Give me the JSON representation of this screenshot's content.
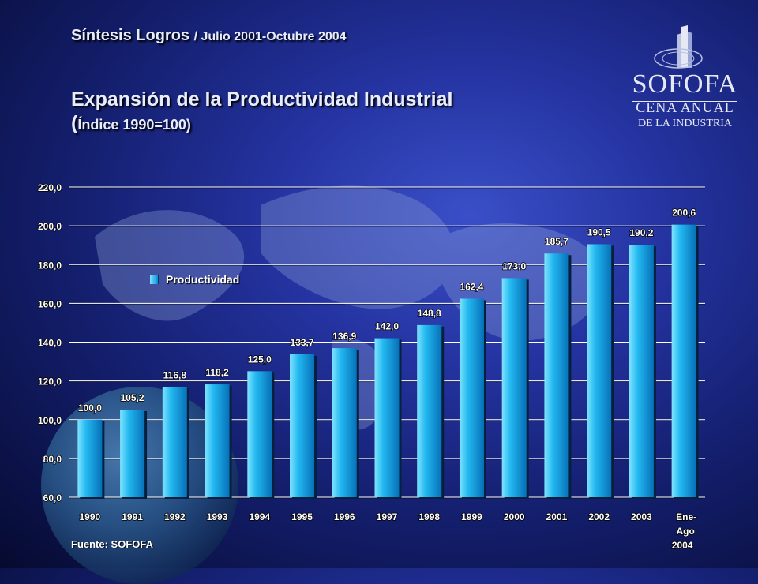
{
  "header": {
    "subtitle": "Síntesis Logros",
    "subtitle_period": "/ Julio 2001-Octubre 2004",
    "title": "Expansión de la Productividad Industrial",
    "index_paren": "(",
    "index_label": "Índice 1990=100)"
  },
  "logo": {
    "name": "SOFOFA",
    "line1": "CENA ANUAL",
    "line2": "DE LA INDUSTRIA"
  },
  "legend": {
    "label": "Productividad"
  },
  "source": "Fuente: SOFOFA",
  "colors": {
    "bar": "#0a9be0",
    "bar_light": "#7fe3ff",
    "bar_shadow": "#04305a"
  },
  "chart_data": {
    "type": "bar",
    "title": "Expansión de la Productividad Industrial",
    "categories": [
      "1990",
      "1991",
      "1992",
      "1993",
      "1994",
      "1995",
      "1996",
      "1997",
      "1998",
      "1999",
      "2000",
      "2001",
      "2002",
      "2003",
      "Ene-Ago 2004"
    ],
    "series": [
      {
        "name": "Productividad",
        "values": [
          100.0,
          105.2,
          116.8,
          118.2,
          125.0,
          133.7,
          136.9,
          142.0,
          148.8,
          162.4,
          173.0,
          185.7,
          190.5,
          190.2,
          200.6
        ],
        "labels": [
          "100,0",
          "105,2",
          "116,8",
          "118,2",
          "125,0",
          "133,7",
          "136,9",
          "142,0",
          "148,8",
          "162,4",
          "173,0",
          "185,7",
          "190,5",
          "190,2",
          "200,6"
        ]
      }
    ],
    "ylim": [
      60,
      220
    ],
    "yticks": [
      "60,0",
      "80,0",
      "100,0",
      "120,0",
      "140,0",
      "160,0",
      "180,0",
      "200,0",
      "220,0"
    ],
    "grid": true,
    "legend": "upper-left"
  }
}
